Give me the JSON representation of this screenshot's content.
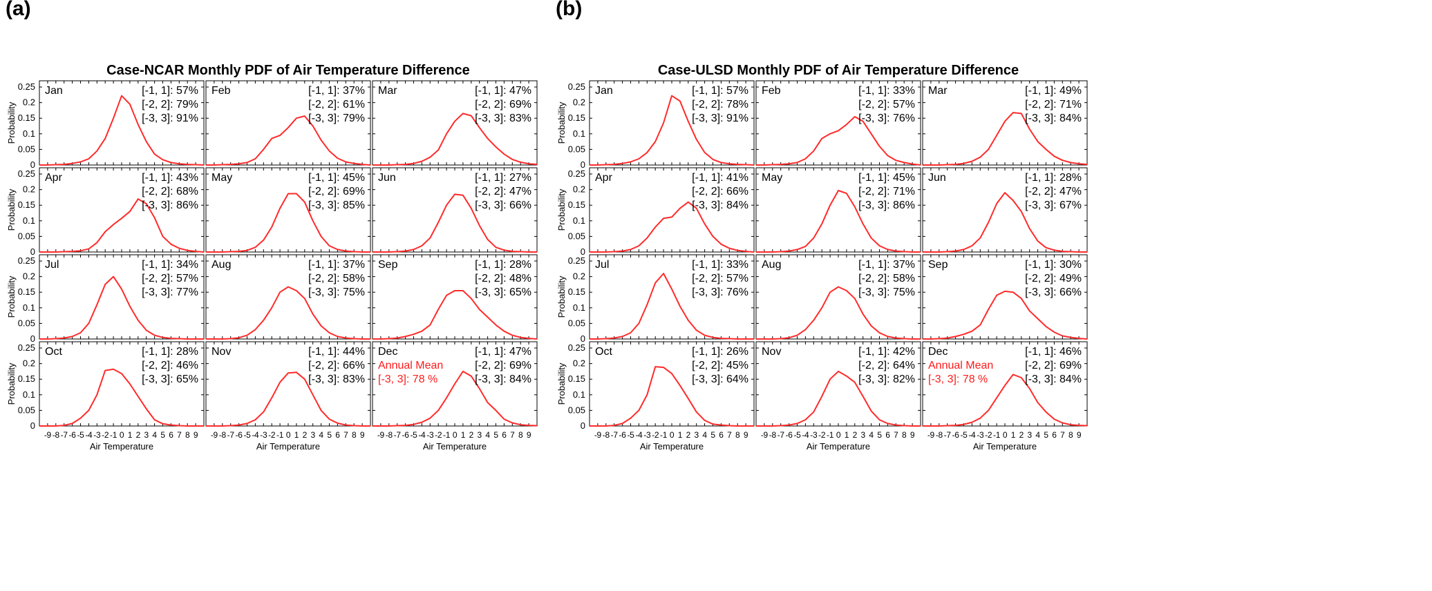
{
  "panels": [
    {
      "letter": "(a)",
      "title": "Case-NCAR Monthly PDF of  Air Temperature Difference",
      "ylabel": "Probability",
      "xlabel": "Air Temperature",
      "yticks": [
        "0.25",
        "0.2",
        "0.15",
        "0.1",
        "0.05",
        "0"
      ],
      "xticks": [
        "-9",
        "-8",
        "-7",
        "-6",
        "-5",
        "-4",
        "-3",
        "-2",
        "-1",
        "0",
        "1",
        "2",
        "3",
        "4",
        "5",
        "6",
        "7",
        "8",
        "9"
      ],
      "annual": {
        "label": "Annual Mean",
        "value": "[-3, 3]: 78 %"
      },
      "months": [
        {
          "name": "Jan",
          "s1": "[-1, 1]: 57%",
          "s2": "[-2, 2]: 79%",
          "s3": "[-3, 3]: 91%"
        },
        {
          "name": "Feb",
          "s1": "[-1, 1]: 37%",
          "s2": "[-2, 2]: 61%",
          "s3": "[-3, 3]: 79%"
        },
        {
          "name": "Mar",
          "s1": "[-1, 1]: 47%",
          "s2": "[-2, 2]: 69%",
          "s3": "[-3, 3]: 83%"
        },
        {
          "name": "Apr",
          "s1": "[-1, 1]: 43%",
          "s2": "[-2, 2]: 68%",
          "s3": "[-3, 3]: 86%"
        },
        {
          "name": "May",
          "s1": "[-1, 1]: 45%",
          "s2": "[-2, 2]: 69%",
          "s3": "[-3, 3]: 85%"
        },
        {
          "name": "Jun",
          "s1": "[-1, 1]: 27%",
          "s2": "[-2, 2]: 47%",
          "s3": "[-3, 3]: 66%"
        },
        {
          "name": "Jul",
          "s1": "[-1, 1]: 34%",
          "s2": "[-2, 2]: 57%",
          "s3": "[-3, 3]: 77%"
        },
        {
          "name": "Aug",
          "s1": "[-1, 1]: 37%",
          "s2": "[-2, 2]: 58%",
          "s3": "[-3, 3]: 75%"
        },
        {
          "name": "Sep",
          "s1": "[-1, 1]: 28%",
          "s2": "[-2, 2]: 48%",
          "s3": "[-3, 3]: 65%"
        },
        {
          "name": "Oct",
          "s1": "[-1, 1]: 28%",
          "s2": "[-2, 2]: 46%",
          "s3": "[-3, 3]: 65%"
        },
        {
          "name": "Nov",
          "s1": "[-1, 1]: 44%",
          "s2": "[-2, 2]: 66%",
          "s3": "[-3, 3]: 83%"
        },
        {
          "name": "Dec",
          "s1": "[-1, 1]: 47%",
          "s2": "[-2, 2]: 69%",
          "s3": "[-3, 3]: 84%"
        }
      ]
    },
    {
      "letter": "(b)",
      "title": "Case-ULSD Monthly PDF of  Air Temperature Difference",
      "ylabel": "Probability",
      "xlabel": "Air Temperature",
      "yticks": [
        "0.25",
        "0.2",
        "0.15",
        "0.1",
        "0.05",
        "0"
      ],
      "xticks": [
        "-9",
        "-8",
        "-7",
        "-6",
        "-5",
        "-4",
        "-3",
        "-2",
        "-1",
        "0",
        "1",
        "2",
        "3",
        "4",
        "5",
        "6",
        "7",
        "8",
        "9"
      ],
      "annual": {
        "label": "Annual Mean",
        "value": "[-3, 3]: 78 %"
      },
      "months": [
        {
          "name": "Jan",
          "s1": "[-1, 1]: 57%",
          "s2": "[-2, 2]: 78%",
          "s3": "[-3, 3]: 91%"
        },
        {
          "name": "Feb",
          "s1": "[-1, 1]: 33%",
          "s2": "[-2, 2]: 57%",
          "s3": "[-3, 3]: 76%"
        },
        {
          "name": "Mar",
          "s1": "[-1, 1]: 49%",
          "s2": "[-2, 2]: 71%",
          "s3": "[-3, 3]: 84%"
        },
        {
          "name": "Apr",
          "s1": "[-1, 1]: 41%",
          "s2": "[-2, 2]: 66%",
          "s3": "[-3, 3]: 84%"
        },
        {
          "name": "May",
          "s1": "[-1, 1]: 45%",
          "s2": "[-2, 2]: 71%",
          "s3": "[-3, 3]: 86%"
        },
        {
          "name": "Jun",
          "s1": "[-1, 1]: 28%",
          "s2": "[-2, 2]: 47%",
          "s3": "[-3, 3]: 67%"
        },
        {
          "name": "Jul",
          "s1": "[-1, 1]: 33%",
          "s2": "[-2, 2]: 57%",
          "s3": "[-3, 3]: 76%"
        },
        {
          "name": "Aug",
          "s1": "[-1, 1]: 37%",
          "s2": "[-2, 2]: 58%",
          "s3": "[-3, 3]: 75%"
        },
        {
          "name": "Sep",
          "s1": "[-1, 1]: 30%",
          "s2": "[-2, 2]: 49%",
          "s3": "[-3, 3]: 66%"
        },
        {
          "name": "Oct",
          "s1": "[-1, 1]: 26%",
          "s2": "[-2, 2]: 45%",
          "s3": "[-3, 3]: 64%"
        },
        {
          "name": "Nov",
          "s1": "[-1, 1]: 42%",
          "s2": "[-2, 2]: 64%",
          "s3": "[-3, 3]: 82%"
        },
        {
          "name": "Dec",
          "s1": "[-1, 1]: 46%",
          "s2": "[-2, 2]: 69%",
          "s3": "[-3, 3]: 84%"
        }
      ]
    }
  ],
  "colors": {
    "curve": "#ff2a2a",
    "annual": "#ff1a1a"
  },
  "chart_data": [
    {
      "type": "line",
      "title": "Case-NCAR Monthly PDF of  Air Temperature Difference",
      "xlabel": "Air Temperature",
      "ylabel": "Probability",
      "x": [
        -10,
        -9,
        -8,
        -7,
        -6,
        -5,
        -4,
        -3,
        -2,
        -1,
        0,
        1,
        2,
        3,
        4,
        5,
        6,
        7,
        8,
        9,
        10
      ],
      "xlim": [
        -10,
        10
      ],
      "ylim": [
        0,
        0.27
      ],
      "grid": false,
      "series": [
        {
          "name": "Jan",
          "values": [
            0,
            0,
            0.001,
            0.002,
            0.005,
            0.01,
            0.02,
            0.045,
            0.085,
            0.15,
            0.222,
            0.195,
            0.13,
            0.075,
            0.035,
            0.017,
            0.008,
            0.004,
            0.002,
            0.001,
            0
          ]
        },
        {
          "name": "Feb",
          "values": [
            0,
            0,
            0.001,
            0.002,
            0.004,
            0.008,
            0.02,
            0.05,
            0.085,
            0.095,
            0.12,
            0.15,
            0.157,
            0.125,
            0.08,
            0.045,
            0.022,
            0.01,
            0.005,
            0.002,
            0
          ]
        },
        {
          "name": "Mar",
          "values": [
            0,
            0,
            0,
            0.001,
            0.002,
            0.005,
            0.012,
            0.025,
            0.048,
            0.1,
            0.14,
            0.165,
            0.158,
            0.12,
            0.085,
            0.058,
            0.035,
            0.018,
            0.009,
            0.004,
            0.002
          ]
        },
        {
          "name": "Apr",
          "values": [
            0,
            0,
            0,
            0.001,
            0.002,
            0.004,
            0.01,
            0.03,
            0.065,
            0.088,
            0.108,
            0.13,
            0.17,
            0.155,
            0.11,
            0.05,
            0.025,
            0.012,
            0.005,
            0.002,
            0
          ]
        },
        {
          "name": "May",
          "values": [
            0,
            0,
            0,
            0.001,
            0.002,
            0.005,
            0.015,
            0.038,
            0.08,
            0.14,
            0.187,
            0.187,
            0.16,
            0.1,
            0.05,
            0.02,
            0.008,
            0.003,
            0.001,
            0,
            0
          ]
        },
        {
          "name": "Jun",
          "values": [
            0,
            0,
            0,
            0.001,
            0.003,
            0.008,
            0.02,
            0.045,
            0.095,
            0.15,
            0.185,
            0.182,
            0.14,
            0.085,
            0.04,
            0.015,
            0.006,
            0.002,
            0.001,
            0,
            0
          ]
        },
        {
          "name": "Jul",
          "values": [
            0,
            0,
            0.001,
            0.003,
            0.008,
            0.02,
            0.05,
            0.11,
            0.175,
            0.2,
            0.16,
            0.105,
            0.06,
            0.028,
            0.012,
            0.005,
            0.002,
            0.001,
            0,
            0,
            0
          ]
        },
        {
          "name": "Aug",
          "values": [
            0,
            0,
            0,
            0.001,
            0.004,
            0.012,
            0.03,
            0.06,
            0.1,
            0.15,
            0.167,
            0.155,
            0.13,
            0.08,
            0.042,
            0.02,
            0.008,
            0.003,
            0.001,
            0,
            0
          ]
        },
        {
          "name": "Sep",
          "values": [
            0,
            0,
            0.001,
            0.003,
            0.008,
            0.015,
            0.025,
            0.045,
            0.095,
            0.14,
            0.155,
            0.155,
            0.13,
            0.095,
            0.07,
            0.045,
            0.025,
            0.012,
            0.005,
            0.002,
            0
          ]
        },
        {
          "name": "Oct",
          "values": [
            0,
            0,
            0,
            0.002,
            0.008,
            0.025,
            0.05,
            0.1,
            0.178,
            0.182,
            0.168,
            0.135,
            0.095,
            0.055,
            0.02,
            0.007,
            0.003,
            0.001,
            0,
            0,
            0
          ]
        },
        {
          "name": "Nov",
          "values": [
            0,
            0,
            0,
            0.001,
            0.003,
            0.008,
            0.02,
            0.045,
            0.09,
            0.14,
            0.17,
            0.172,
            0.15,
            0.1,
            0.05,
            0.022,
            0.009,
            0.003,
            0.001,
            0,
            0
          ]
        },
        {
          "name": "Dec",
          "values": [
            0,
            0,
            0,
            0.001,
            0.002,
            0.005,
            0.012,
            0.025,
            0.05,
            0.09,
            0.135,
            0.175,
            0.16,
            0.12,
            0.075,
            0.05,
            0.022,
            0.01,
            0.004,
            0.002,
            0.001
          ]
        }
      ]
    },
    {
      "type": "line",
      "title": "Case-ULSD Monthly PDF of  Air Temperature Difference",
      "xlabel": "Air Temperature",
      "ylabel": "Probability",
      "x": [
        -10,
        -9,
        -8,
        -7,
        -6,
        -5,
        -4,
        -3,
        -2,
        -1,
        0,
        1,
        2,
        3,
        4,
        5,
        6,
        7,
        8,
        9,
        10
      ],
      "xlim": [
        -10,
        10
      ],
      "ylim": [
        0,
        0.27
      ],
      "grid": false,
      "series": [
        {
          "name": "Jan",
          "values": [
            0,
            0,
            0.001,
            0.002,
            0.005,
            0.01,
            0.02,
            0.04,
            0.075,
            0.135,
            0.222,
            0.205,
            0.14,
            0.082,
            0.04,
            0.018,
            0.008,
            0.004,
            0.002,
            0.001,
            0
          ]
        },
        {
          "name": "Feb",
          "values": [
            0,
            0,
            0.001,
            0.002,
            0.004,
            0.008,
            0.02,
            0.045,
            0.085,
            0.1,
            0.11,
            0.13,
            0.155,
            0.14,
            0.1,
            0.06,
            0.03,
            0.015,
            0.008,
            0.003,
            0
          ]
        },
        {
          "name": "Mar",
          "values": [
            0,
            0,
            0,
            0.001,
            0.002,
            0.005,
            0.012,
            0.025,
            0.05,
            0.095,
            0.14,
            0.168,
            0.165,
            0.115,
            0.075,
            0.05,
            0.028,
            0.015,
            0.008,
            0.004,
            0.002
          ]
        },
        {
          "name": "Apr",
          "values": [
            0,
            0,
            0,
            0.001,
            0.003,
            0.008,
            0.02,
            0.045,
            0.08,
            0.108,
            0.112,
            0.14,
            0.16,
            0.14,
            0.09,
            0.05,
            0.025,
            0.012,
            0.005,
            0.002,
            0
          ]
        },
        {
          "name": "May",
          "values": [
            0,
            0,
            0,
            0.001,
            0.003,
            0.008,
            0.018,
            0.045,
            0.09,
            0.15,
            0.197,
            0.188,
            0.145,
            0.09,
            0.045,
            0.02,
            0.008,
            0.003,
            0.001,
            0,
            0
          ]
        },
        {
          "name": "Jun",
          "values": [
            0,
            0,
            0,
            0.001,
            0.003,
            0.008,
            0.02,
            0.045,
            0.095,
            0.155,
            0.19,
            0.165,
            0.13,
            0.075,
            0.035,
            0.014,
            0.006,
            0.002,
            0.001,
            0,
            0
          ]
        },
        {
          "name": "Jul",
          "values": [
            0,
            0,
            0.001,
            0.003,
            0.008,
            0.02,
            0.05,
            0.11,
            0.18,
            0.21,
            0.16,
            0.105,
            0.06,
            0.028,
            0.012,
            0.005,
            0.002,
            0.001,
            0,
            0,
            0
          ]
        },
        {
          "name": "Aug",
          "values": [
            0,
            0,
            0,
            0.001,
            0.004,
            0.012,
            0.03,
            0.06,
            0.1,
            0.15,
            0.167,
            0.155,
            0.13,
            0.08,
            0.042,
            0.02,
            0.008,
            0.003,
            0.001,
            0,
            0
          ]
        },
        {
          "name": "Sep",
          "values": [
            0,
            0,
            0.001,
            0.003,
            0.008,
            0.015,
            0.025,
            0.045,
            0.095,
            0.14,
            0.153,
            0.15,
            0.13,
            0.09,
            0.065,
            0.04,
            0.022,
            0.01,
            0.005,
            0.002,
            0
          ]
        },
        {
          "name": "Oct",
          "values": [
            0,
            0,
            0,
            0.002,
            0.008,
            0.025,
            0.05,
            0.1,
            0.19,
            0.188,
            0.168,
            0.13,
            0.088,
            0.045,
            0.018,
            0.006,
            0.003,
            0.001,
            0,
            0,
            0
          ]
        },
        {
          "name": "Nov",
          "values": [
            0,
            0,
            0,
            0.001,
            0.003,
            0.008,
            0.02,
            0.045,
            0.095,
            0.15,
            0.175,
            0.16,
            0.14,
            0.095,
            0.048,
            0.02,
            0.008,
            0.003,
            0.001,
            0,
            0
          ]
        },
        {
          "name": "Dec",
          "values": [
            0,
            0,
            0,
            0.001,
            0.002,
            0.005,
            0.012,
            0.025,
            0.05,
            0.09,
            0.13,
            0.165,
            0.155,
            0.12,
            0.075,
            0.045,
            0.022,
            0.01,
            0.004,
            0.002,
            0.001
          ]
        }
      ]
    }
  ]
}
